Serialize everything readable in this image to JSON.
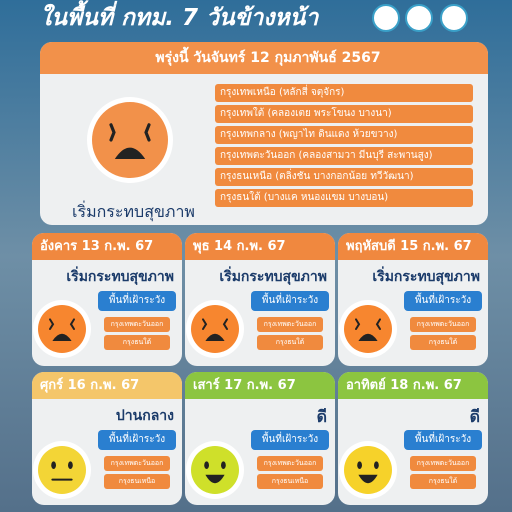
{
  "header": {
    "title": "ในพื้นที่ กทม. 7 วันข้างหน้า"
  },
  "today": {
    "date": "พรุ่งนี้ วันจันทร์ 12 กุมภาพันธ์ 2567",
    "status": "เริ่มกระทบสุขภาพ",
    "color": "#f2914a",
    "areas": [
      "กรุงเทพเหนือ (หลักสี่ จตุจักร)",
      "กรุงเทพใต้ (คลองเตย พระโขนง บางนา)",
      "กรุงเทพกลาง (พญาไท ดินแดง ห้วยขวาง)",
      "กรุงเทพตะวันออก (คลองสามวา มีนบุรี สะพานสูง)",
      "กรุงธนเหนือ (ตลิ่งชัน บางกอกน้อย ทวีวัฒนา)",
      "กรุงธนใต้ (บางแค หนองแขม บางบอน)"
    ]
  },
  "days": [
    {
      "date": "อังคาร 13 ก.พ. 67",
      "status": "เริ่มกระทบสุขภาพ",
      "watch_label": "พื้นที่เฝ้าระวัง",
      "color": "#f0883f",
      "areas": [
        "กรุงเทพตะวันออก",
        "กรุงธนใต้"
      ]
    },
    {
      "date": "พุธ 14 ก.พ. 67",
      "status": "เริ่มกระทบสุขภาพ",
      "watch_label": "พื้นที่เฝ้าระวัง",
      "color": "#f0883f",
      "areas": [
        "กรุงเทพตะวันออก",
        "กรุงธนใต้"
      ]
    },
    {
      "date": "พฤหัสบดี 15 ก.พ. 67",
      "status": "เริ่มกระทบสุขภาพ",
      "watch_label": "พื้นที่เฝ้าระวัง",
      "color": "#f0883f",
      "areas": [
        "กรุงเทพตะวันออก",
        "กรุงธนใต้"
      ]
    },
    {
      "date": "ศุกร์ 16 ก.พ. 67",
      "status": "ปานกลาง",
      "watch_label": "พื้นที่เฝ้าระวัง",
      "color": "#f4c66a",
      "areas": [
        "กรุงเทพตะวันออก",
        "กรุงธนเหนือ"
      ]
    },
    {
      "date": "เสาร์ 17 ก.พ. 67",
      "status": "ดี",
      "watch_label": "พื้นที่เฝ้าระวัง",
      "color": "#8cc540",
      "areas": [
        "กรุงเทพตะวันออก",
        "กรุงธนเหนือ"
      ]
    },
    {
      "date": "อาทิตย์ 18 ก.พ. 67",
      "status": "ดี",
      "watch_label": "พื้นที่เฝ้าระวัง",
      "color": "#8cc540",
      "areas": [
        "กรุงเทพตะวันออก",
        "กรุงธนใต้"
      ]
    }
  ]
}
